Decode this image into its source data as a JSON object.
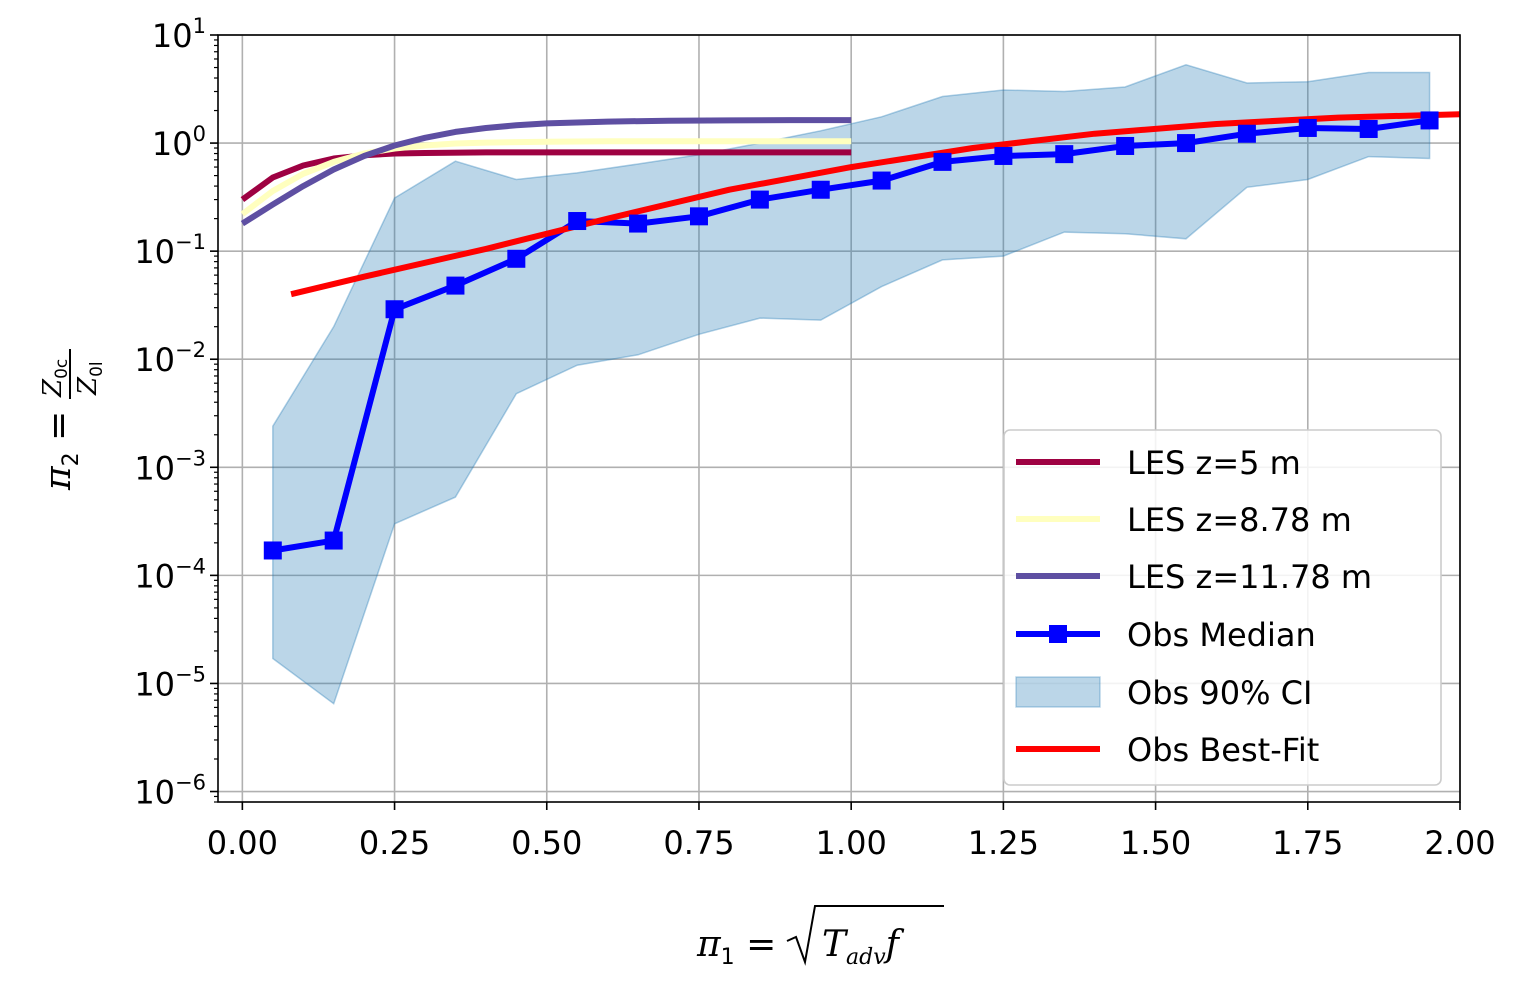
{
  "chart_data": {
    "type": "line",
    "xlabel": "π1 = √(Tadv f)",
    "ylabel": "π2 = Z0c / Z0l",
    "xlim": [
      -0.04,
      2.0
    ],
    "ylim": [
      8e-07,
      10
    ],
    "yscale": "log",
    "grid": true,
    "legend_position": "lower-right",
    "x_ticks": [
      0.0,
      0.25,
      0.5,
      0.75,
      1.0,
      1.25,
      1.5,
      1.75,
      2.0
    ],
    "x_tick_labels": [
      "0.00",
      "0.25",
      "0.50",
      "0.75",
      "1.00",
      "1.25",
      "1.50",
      "1.75",
      "2.00"
    ],
    "y_ticks": [
      1e-06,
      1e-05,
      0.0001,
      0.001,
      0.01,
      0.1,
      1,
      10
    ],
    "y_tick_labels": [
      {
        "base": "10",
        "exp": "−6"
      },
      {
        "base": "10",
        "exp": "−5"
      },
      {
        "base": "10",
        "exp": "−4"
      },
      {
        "base": "10",
        "exp": "−3"
      },
      {
        "base": "10",
        "exp": "−2"
      },
      {
        "base": "10",
        "exp": "−1"
      },
      {
        "base": "10",
        "exp": "0"
      },
      {
        "base": "10",
        "exp": "1"
      }
    ],
    "series": [
      {
        "name": "LES z=5 m",
        "kind": "line",
        "color": "#9e0142",
        "x": [
          0.0,
          0.05,
          0.1,
          0.15,
          0.2,
          0.25,
          0.3,
          0.4,
          0.5,
          0.6,
          0.7,
          0.8,
          0.9,
          1.0
        ],
        "y": [
          0.3,
          0.48,
          0.62,
          0.72,
          0.77,
          0.8,
          0.81,
          0.82,
          0.82,
          0.82,
          0.82,
          0.82,
          0.82,
          0.82
        ]
      },
      {
        "name": "LES z=8.78 m",
        "kind": "line",
        "color": "#ffffbf",
        "x": [
          0.0,
          0.05,
          0.1,
          0.15,
          0.2,
          0.25,
          0.3,
          0.35,
          0.4,
          0.5,
          0.6,
          0.7,
          0.8,
          0.9,
          1.0
        ],
        "y": [
          0.22,
          0.36,
          0.52,
          0.67,
          0.8,
          0.89,
          0.95,
          0.99,
          1.01,
          1.03,
          1.04,
          1.04,
          1.04,
          1.04,
          1.04
        ]
      },
      {
        "name": "LES z=11.78 m",
        "kind": "line",
        "color": "#5e4fa2",
        "x": [
          0.0,
          0.05,
          0.1,
          0.15,
          0.2,
          0.25,
          0.3,
          0.35,
          0.4,
          0.45,
          0.5,
          0.6,
          0.7,
          0.8,
          0.9,
          1.0
        ],
        "y": [
          0.18,
          0.27,
          0.4,
          0.57,
          0.76,
          0.95,
          1.12,
          1.27,
          1.38,
          1.46,
          1.52,
          1.58,
          1.61,
          1.62,
          1.63,
          1.63
        ]
      },
      {
        "name": "Obs Median",
        "kind": "line-marker",
        "color": "#0000ff",
        "marker": "square",
        "x": [
          0.05,
          0.15,
          0.25,
          0.35,
          0.45,
          0.55,
          0.65,
          0.75,
          0.85,
          0.95,
          1.05,
          1.15,
          1.25,
          1.35,
          1.45,
          1.55,
          1.65,
          1.75,
          1.85,
          1.95
        ],
        "y": [
          0.00017,
          0.00021,
          0.029,
          0.048,
          0.085,
          0.19,
          0.18,
          0.21,
          0.3,
          0.37,
          0.45,
          0.67,
          0.76,
          0.79,
          0.94,
          1.0,
          1.22,
          1.38,
          1.35,
          1.62
        ]
      },
      {
        "name": "Obs 90% CI",
        "kind": "band",
        "color": "#1f77b4",
        "opacity": 0.3,
        "x": [
          0.05,
          0.15,
          0.25,
          0.35,
          0.45,
          0.55,
          0.65,
          0.75,
          0.85,
          0.95,
          1.05,
          1.15,
          1.25,
          1.35,
          1.45,
          1.55,
          1.65,
          1.75,
          1.85,
          1.95
        ],
        "lower": [
          1.7e-05,
          6.5e-06,
          0.0003,
          0.00053,
          0.0048,
          0.0088,
          0.011,
          0.017,
          0.024,
          0.023,
          0.047,
          0.083,
          0.09,
          0.15,
          0.145,
          0.13,
          0.39,
          0.46,
          0.75,
          0.72
        ],
        "upper": [
          0.0024,
          0.02,
          0.31,
          0.68,
          0.46,
          0.53,
          0.64,
          0.78,
          1.0,
          1.3,
          1.75,
          2.7,
          3.1,
          3.0,
          3.3,
          5.3,
          3.6,
          3.7,
          4.5,
          4.5
        ]
      },
      {
        "name": "Obs Best-Fit",
        "kind": "line",
        "color": "#ff0000",
        "x": [
          0.08,
          0.2,
          0.4,
          0.6,
          0.8,
          1.0,
          1.2,
          1.4,
          1.6,
          1.8,
          2.0
        ],
        "y": [
          0.04,
          0.058,
          0.105,
          0.2,
          0.37,
          0.6,
          0.9,
          1.22,
          1.5,
          1.72,
          1.85
        ]
      }
    ]
  }
}
